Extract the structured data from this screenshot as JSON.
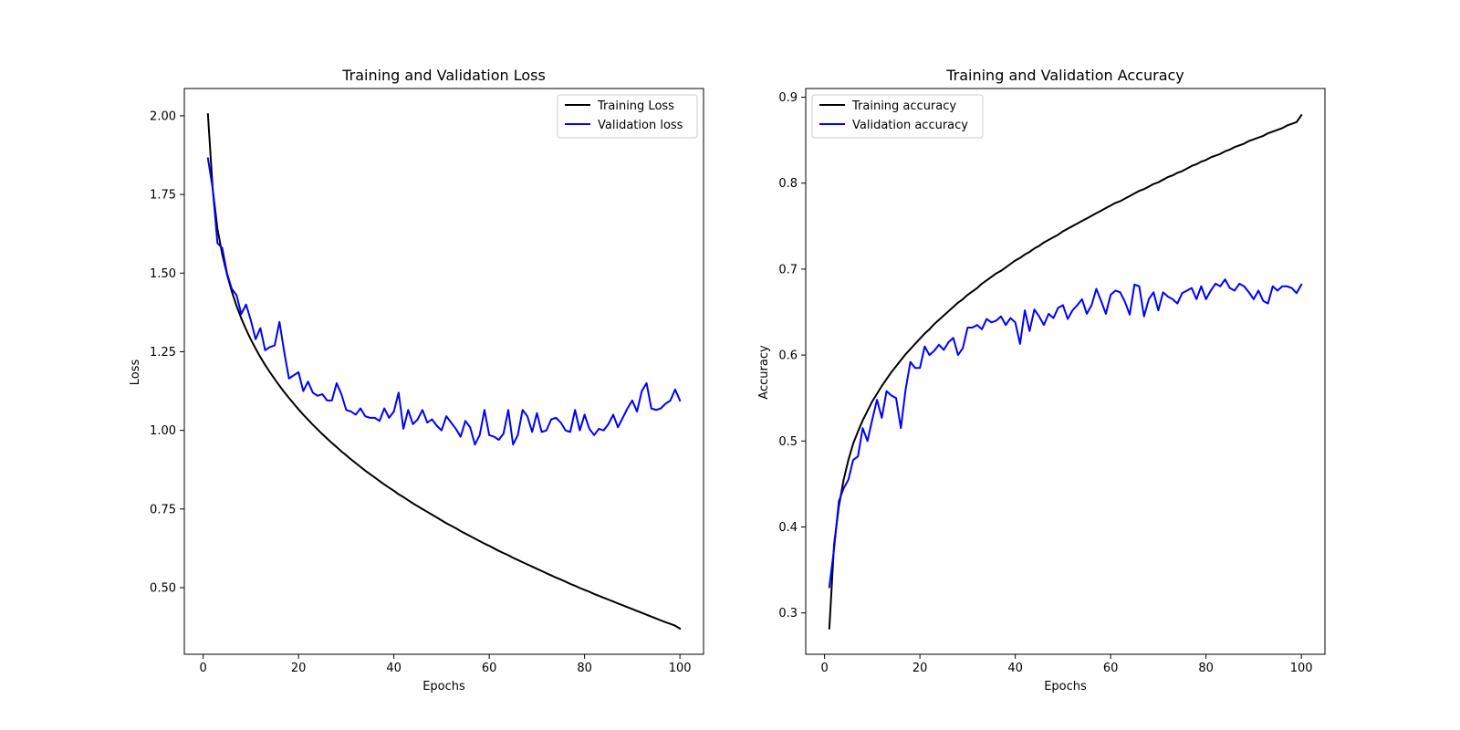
{
  "chart_data": [
    {
      "type": "line",
      "title": "Training and Validation Loss",
      "xlabel": "Epochs",
      "ylabel": "Loss",
      "xlim": [
        -3.95,
        104.95
      ],
      "ylim": [
        0.2883,
        2.0868
      ],
      "xticks": [
        0,
        20,
        40,
        60,
        80,
        100
      ],
      "xtick_labels": [
        "0",
        "20",
        "40",
        "60",
        "80",
        "100"
      ],
      "yticks": [
        0.5,
        0.75,
        1.0,
        1.25,
        1.5,
        1.75,
        2.0
      ],
      "ytick_labels": [
        "0.50",
        "0.75",
        "1.00",
        "1.25",
        "1.50",
        "1.75",
        "2.00"
      ],
      "grid": false,
      "legend_position": "upper-right",
      "x": [
        1,
        2,
        3,
        4,
        5,
        6,
        7,
        8,
        9,
        10,
        11,
        12,
        13,
        14,
        15,
        16,
        17,
        18,
        19,
        20,
        21,
        22,
        23,
        24,
        25,
        26,
        27,
        28,
        29,
        30,
        31,
        32,
        33,
        34,
        35,
        36,
        37,
        38,
        39,
        40,
        41,
        42,
        43,
        44,
        45,
        46,
        47,
        48,
        49,
        50,
        51,
        52,
        53,
        54,
        55,
        56,
        57,
        58,
        59,
        60,
        61,
        62,
        63,
        64,
        65,
        66,
        67,
        68,
        69,
        70,
        71,
        72,
        73,
        74,
        75,
        76,
        77,
        78,
        79,
        80,
        81,
        82,
        83,
        84,
        85,
        86,
        87,
        88,
        89,
        90,
        91,
        92,
        93,
        94,
        95,
        96,
        97,
        98,
        99,
        100
      ],
      "series": [
        {
          "name": "Training Loss",
          "color": "#000000",
          "values": [
            2.005,
            1.768,
            1.641,
            1.56,
            1.496,
            1.442,
            1.396,
            1.356,
            1.321,
            1.289,
            1.26,
            1.233,
            1.208,
            1.185,
            1.163,
            1.142,
            1.122,
            1.103,
            1.085,
            1.067,
            1.05,
            1.034,
            1.018,
            1.003,
            0.988,
            0.974,
            0.96,
            0.947,
            0.933,
            0.921,
            0.908,
            0.896,
            0.884,
            0.872,
            0.861,
            0.85,
            0.839,
            0.828,
            0.818,
            0.808,
            0.797,
            0.788,
            0.778,
            0.768,
            0.759,
            0.75,
            0.741,
            0.732,
            0.723,
            0.714,
            0.705,
            0.697,
            0.689,
            0.68,
            0.672,
            0.664,
            0.656,
            0.648,
            0.64,
            0.633,
            0.625,
            0.617,
            0.61,
            0.603,
            0.595,
            0.588,
            0.581,
            0.574,
            0.567,
            0.56,
            0.553,
            0.546,
            0.539,
            0.532,
            0.526,
            0.519,
            0.512,
            0.506,
            0.499,
            0.493,
            0.487,
            0.48,
            0.474,
            0.468,
            0.462,
            0.456,
            0.45,
            0.444,
            0.438,
            0.432,
            0.426,
            0.42,
            0.414,
            0.408,
            0.402,
            0.396,
            0.39,
            0.385,
            0.379,
            0.37
          ]
        },
        {
          "name": "Validation loss",
          "color": "#0000ff",
          "values": [
            1.865,
            1.77,
            1.595,
            1.58,
            1.5,
            1.45,
            1.43,
            1.37,
            1.4,
            1.35,
            1.29,
            1.325,
            1.255,
            1.265,
            1.27,
            1.345,
            1.25,
            1.165,
            1.175,
            1.185,
            1.125,
            1.155,
            1.12,
            1.11,
            1.115,
            1.095,
            1.095,
            1.15,
            1.115,
            1.065,
            1.06,
            1.05,
            1.07,
            1.045,
            1.04,
            1.04,
            1.03,
            1.07,
            1.04,
            1.06,
            1.12,
            1.005,
            1.065,
            1.02,
            1.035,
            1.065,
            1.025,
            1.035,
            1.015,
            1.0,
            1.045,
            1.025,
            1.005,
            0.98,
            1.03,
            1.01,
            0.955,
            0.985,
            1.065,
            0.985,
            0.98,
            0.97,
            0.99,
            1.065,
            0.955,
            0.985,
            1.065,
            1.045,
            0.995,
            1.055,
            0.995,
            1.0,
            1.035,
            1.04,
            1.025,
            1.0,
            0.995,
            1.065,
            1.0,
            1.05,
            1.005,
            0.985,
            1.005,
            1.0,
            1.02,
            1.05,
            1.01,
            1.04,
            1.07,
            1.095,
            1.06,
            1.125,
            1.15,
            1.07,
            1.065,
            1.07,
            1.085,
            1.095,
            1.13,
            1.095
          ]
        }
      ]
    },
    {
      "type": "line",
      "title": "Training and Validation Accuracy",
      "xlabel": "Epochs",
      "ylabel": "Accuracy",
      "xlim": [
        -3.95,
        104.95
      ],
      "ylim": [
        0.2519,
        0.9101
      ],
      "xticks": [
        0,
        20,
        40,
        60,
        80,
        100
      ],
      "xtick_labels": [
        "0",
        "20",
        "40",
        "60",
        "80",
        "100"
      ],
      "yticks": [
        0.3,
        0.4,
        0.5,
        0.6,
        0.7,
        0.8,
        0.9
      ],
      "ytick_labels": [
        "0.3",
        "0.4",
        "0.5",
        "0.6",
        "0.7",
        "0.8",
        "0.9"
      ],
      "grid": false,
      "legend_position": "upper-left",
      "x": [
        1,
        2,
        3,
        4,
        5,
        6,
        7,
        8,
        9,
        10,
        11,
        12,
        13,
        14,
        15,
        16,
        17,
        18,
        19,
        20,
        21,
        22,
        23,
        24,
        25,
        26,
        27,
        28,
        29,
        30,
        31,
        32,
        33,
        34,
        35,
        36,
        37,
        38,
        39,
        40,
        41,
        42,
        43,
        44,
        45,
        46,
        47,
        48,
        49,
        50,
        51,
        52,
        53,
        54,
        55,
        56,
        57,
        58,
        59,
        60,
        61,
        62,
        63,
        64,
        65,
        66,
        67,
        68,
        69,
        70,
        71,
        72,
        73,
        74,
        75,
        76,
        77,
        78,
        79,
        80,
        81,
        82,
        83,
        84,
        85,
        86,
        87,
        88,
        89,
        90,
        91,
        92,
        93,
        94,
        95,
        96,
        97,
        98,
        99,
        100
      ],
      "series": [
        {
          "name": "Training accuracy",
          "color": "#000000",
          "values": [
            0.282,
            0.38,
            0.424,
            0.455,
            0.478,
            0.497,
            0.511,
            0.524,
            0.535,
            0.546,
            0.555,
            0.564,
            0.572,
            0.58,
            0.587,
            0.594,
            0.601,
            0.607,
            0.613,
            0.619,
            0.625,
            0.63,
            0.636,
            0.641,
            0.646,
            0.651,
            0.656,
            0.661,
            0.665,
            0.67,
            0.674,
            0.678,
            0.683,
            0.687,
            0.691,
            0.695,
            0.698,
            0.702,
            0.706,
            0.71,
            0.713,
            0.717,
            0.72,
            0.724,
            0.727,
            0.731,
            0.734,
            0.737,
            0.74,
            0.744,
            0.747,
            0.75,
            0.753,
            0.756,
            0.759,
            0.762,
            0.765,
            0.768,
            0.771,
            0.774,
            0.777,
            0.779,
            0.782,
            0.785,
            0.788,
            0.791,
            0.793,
            0.796,
            0.799,
            0.801,
            0.804,
            0.807,
            0.809,
            0.812,
            0.814,
            0.817,
            0.82,
            0.822,
            0.825,
            0.827,
            0.83,
            0.832,
            0.834,
            0.837,
            0.839,
            0.842,
            0.844,
            0.846,
            0.849,
            0.851,
            0.853,
            0.855,
            0.858,
            0.86,
            0.862,
            0.864,
            0.867,
            0.869,
            0.871,
            0.879
          ]
        },
        {
          "name": "Validation accuracy",
          "color": "#0000ff",
          "values": [
            0.33,
            0.375,
            0.43,
            0.445,
            0.455,
            0.478,
            0.482,
            0.515,
            0.5,
            0.525,
            0.548,
            0.527,
            0.558,
            0.553,
            0.55,
            0.515,
            0.56,
            0.592,
            0.585,
            0.585,
            0.61,
            0.6,
            0.605,
            0.612,
            0.606,
            0.615,
            0.62,
            0.6,
            0.608,
            0.632,
            0.632,
            0.635,
            0.63,
            0.642,
            0.638,
            0.64,
            0.645,
            0.635,
            0.643,
            0.638,
            0.613,
            0.652,
            0.628,
            0.653,
            0.645,
            0.635,
            0.648,
            0.643,
            0.655,
            0.658,
            0.642,
            0.652,
            0.658,
            0.665,
            0.648,
            0.658,
            0.677,
            0.663,
            0.648,
            0.67,
            0.675,
            0.673,
            0.662,
            0.647,
            0.682,
            0.68,
            0.645,
            0.665,
            0.673,
            0.652,
            0.673,
            0.668,
            0.665,
            0.66,
            0.672,
            0.675,
            0.678,
            0.665,
            0.68,
            0.665,
            0.675,
            0.683,
            0.68,
            0.688,
            0.678,
            0.675,
            0.683,
            0.68,
            0.673,
            0.665,
            0.675,
            0.663,
            0.66,
            0.68,
            0.675,
            0.68,
            0.68,
            0.678,
            0.672,
            0.682
          ]
        }
      ]
    }
  ]
}
